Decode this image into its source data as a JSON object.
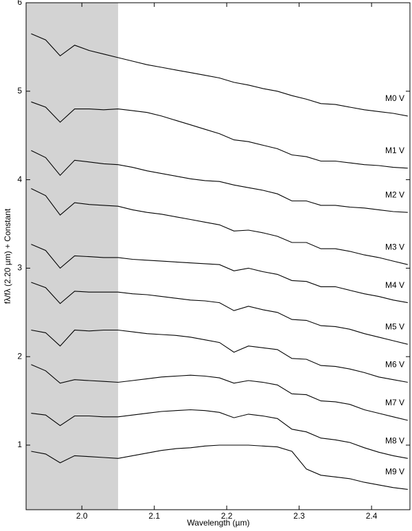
{
  "chart_data": {
    "type": "line",
    "x_label": "Wavelength (µm)",
    "y_label": "fλ/fλ (2.20 µm) + Constant",
    "x": [
      1.93,
      1.95,
      1.97,
      1.99,
      2.01,
      2.03,
      2.05,
      2.07,
      2.09,
      2.11,
      2.13,
      2.15,
      2.17,
      2.19,
      2.21,
      2.23,
      2.25,
      2.27,
      2.29,
      2.31,
      2.33,
      2.35,
      2.37,
      2.39,
      2.41,
      2.43,
      2.45
    ],
    "series": [
      {
        "name": "M0 V",
        "color": "#000000",
        "values": [
          5.65,
          5.58,
          5.4,
          5.52,
          5.46,
          5.42,
          5.38,
          5.34,
          5.3,
          5.27,
          5.24,
          5.21,
          5.18,
          5.15,
          5.1,
          5.07,
          5.03,
          5.0,
          4.95,
          4.91,
          4.86,
          4.85,
          4.82,
          4.79,
          4.77,
          4.75,
          4.72
        ]
      },
      {
        "name": "M1 V",
        "color": "#000000",
        "values": [
          4.88,
          4.82,
          4.65,
          4.8,
          4.8,
          4.79,
          4.8,
          4.78,
          4.76,
          4.72,
          4.67,
          4.62,
          4.57,
          4.52,
          4.45,
          4.43,
          4.39,
          4.35,
          4.28,
          4.26,
          4.21,
          4.21,
          4.19,
          4.17,
          4.16,
          4.14,
          4.13
        ]
      },
      {
        "name": "M2 V",
        "color": "#000000",
        "values": [
          4.33,
          4.25,
          4.05,
          4.22,
          4.2,
          4.18,
          4.17,
          4.14,
          4.1,
          4.07,
          4.04,
          4.01,
          3.99,
          3.98,
          3.94,
          3.91,
          3.88,
          3.84,
          3.76,
          3.76,
          3.71,
          3.71,
          3.69,
          3.68,
          3.66,
          3.64,
          3.63
        ]
      },
      {
        "name": "M3 V",
        "color": "#000000",
        "values": [
          3.9,
          3.82,
          3.6,
          3.74,
          3.72,
          3.71,
          3.7,
          3.66,
          3.63,
          3.61,
          3.58,
          3.55,
          3.52,
          3.49,
          3.42,
          3.43,
          3.4,
          3.36,
          3.29,
          3.29,
          3.22,
          3.22,
          3.19,
          3.15,
          3.12,
          3.08,
          3.04
        ]
      },
      {
        "name": "M4 V",
        "color": "#000000",
        "values": [
          3.27,
          3.2,
          3.0,
          3.14,
          3.13,
          3.12,
          3.12,
          3.1,
          3.09,
          3.08,
          3.07,
          3.06,
          3.05,
          3.04,
          2.97,
          3.0,
          2.96,
          2.93,
          2.86,
          2.85,
          2.79,
          2.79,
          2.75,
          2.71,
          2.68,
          2.64,
          2.61
        ]
      },
      {
        "name": "M5 V",
        "color": "#000000",
        "values": [
          2.84,
          2.78,
          2.6,
          2.74,
          2.73,
          2.73,
          2.73,
          2.71,
          2.7,
          2.68,
          2.66,
          2.64,
          2.63,
          2.61,
          2.52,
          2.57,
          2.53,
          2.5,
          2.42,
          2.41,
          2.35,
          2.34,
          2.31,
          2.26,
          2.22,
          2.18,
          2.14
        ]
      },
      {
        "name": "M6 V",
        "color": "#000000",
        "values": [
          2.3,
          2.27,
          2.12,
          2.3,
          2.29,
          2.3,
          2.3,
          2.28,
          2.26,
          2.25,
          2.24,
          2.22,
          2.19,
          2.16,
          2.05,
          2.12,
          2.1,
          2.08,
          1.98,
          1.97,
          1.9,
          1.89,
          1.86,
          1.82,
          1.77,
          1.74,
          1.71
        ]
      },
      {
        "name": "M7 V",
        "color": "#000000",
        "values": [
          1.91,
          1.84,
          1.7,
          1.74,
          1.73,
          1.72,
          1.71,
          1.73,
          1.75,
          1.77,
          1.78,
          1.79,
          1.78,
          1.76,
          1.7,
          1.73,
          1.71,
          1.68,
          1.58,
          1.57,
          1.5,
          1.49,
          1.46,
          1.4,
          1.36,
          1.32,
          1.28
        ]
      },
      {
        "name": "M8 V",
        "color": "#000000",
        "values": [
          1.36,
          1.34,
          1.22,
          1.33,
          1.33,
          1.32,
          1.32,
          1.34,
          1.36,
          1.38,
          1.39,
          1.4,
          1.39,
          1.37,
          1.31,
          1.35,
          1.33,
          1.3,
          1.18,
          1.15,
          1.08,
          1.06,
          1.03,
          0.97,
          0.92,
          0.88,
          0.85
        ]
      },
      {
        "name": "M9 V",
        "color": "#000000",
        "values": [
          0.93,
          0.9,
          0.8,
          0.88,
          0.87,
          0.86,
          0.85,
          0.88,
          0.91,
          0.94,
          0.96,
          0.97,
          0.99,
          1.0,
          1.0,
          1.0,
          0.99,
          0.98,
          0.93,
          0.73,
          0.66,
          0.64,
          0.62,
          0.58,
          0.55,
          0.52,
          0.5
        ]
      }
    ],
    "xlim": [
      1.923,
      2.453
    ],
    "ylim": [
      0.27,
      6.0
    ],
    "xticks": [
      {
        "value": 2,
        "label": "2.0"
      },
      2.1,
      2.2,
      2.3,
      2.4
    ],
    "yticks": [
      1,
      2,
      3,
      4,
      5,
      6
    ],
    "shade_xrange": [
      1.923,
      2.05
    ],
    "shade_color": "#d3d3d3"
  }
}
